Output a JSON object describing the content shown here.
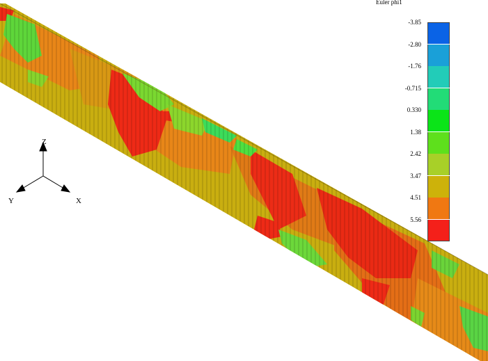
{
  "legend": {
    "title": "Euler phi1",
    "ticks": [
      "-3.85",
      "-2.80",
      "-1.76",
      "-0.715",
      "0.330",
      "1.38",
      "2.42",
      "3.47",
      "4.51",
      "5.56"
    ],
    "colors": [
      "#0a63e6",
      "#1aa0d8",
      "#22ccb8",
      "#22dc77",
      "#0be418",
      "#5ee01c",
      "#a8d028",
      "#cdb20a",
      "#f07812",
      "#f4201a"
    ]
  },
  "triad": {
    "z": "Z",
    "y": "Y",
    "x": "X"
  },
  "specimen": {
    "description_colors": [
      "#c8b00c",
      "#e88416",
      "#ee2c16",
      "#3ed83a",
      "#9cd22a"
    ]
  }
}
